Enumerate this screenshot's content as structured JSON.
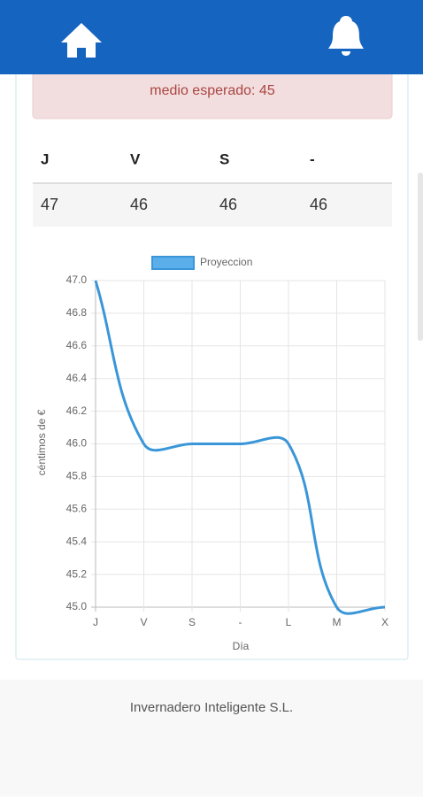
{
  "alert": {
    "text": "medio esperado: 45"
  },
  "table": {
    "header": [
      "J",
      "V",
      "S",
      "-"
    ],
    "rows": [
      [
        "47",
        "46",
        "46",
        "46"
      ]
    ]
  },
  "chart_data": {
    "type": "line",
    "legend": "Proyeccion",
    "x_label": "Día",
    "y_label": "céntimos de €",
    "categories": [
      "J",
      "V",
      "S",
      "-",
      "L",
      "M",
      "X"
    ],
    "series": [
      {
        "name": "Proyeccion",
        "color": "#3a96d8",
        "values": [
          47,
          46,
          46,
          46,
          46,
          45,
          45
        ]
      }
    ],
    "ylim": [
      45,
      47
    ],
    "yticks": [
      {
        "value": 45,
        "label": "45.0"
      },
      45.2,
      45.4,
      45.6,
      45.8,
      {
        "value": 46,
        "label": "46.0"
      },
      46.2,
      46.4,
      46.6,
      46.8,
      {
        "value": 47,
        "label": "47.0"
      }
    ],
    "grid": true
  },
  "footer": {
    "text": "Invernadero Inteligente S.L."
  }
}
